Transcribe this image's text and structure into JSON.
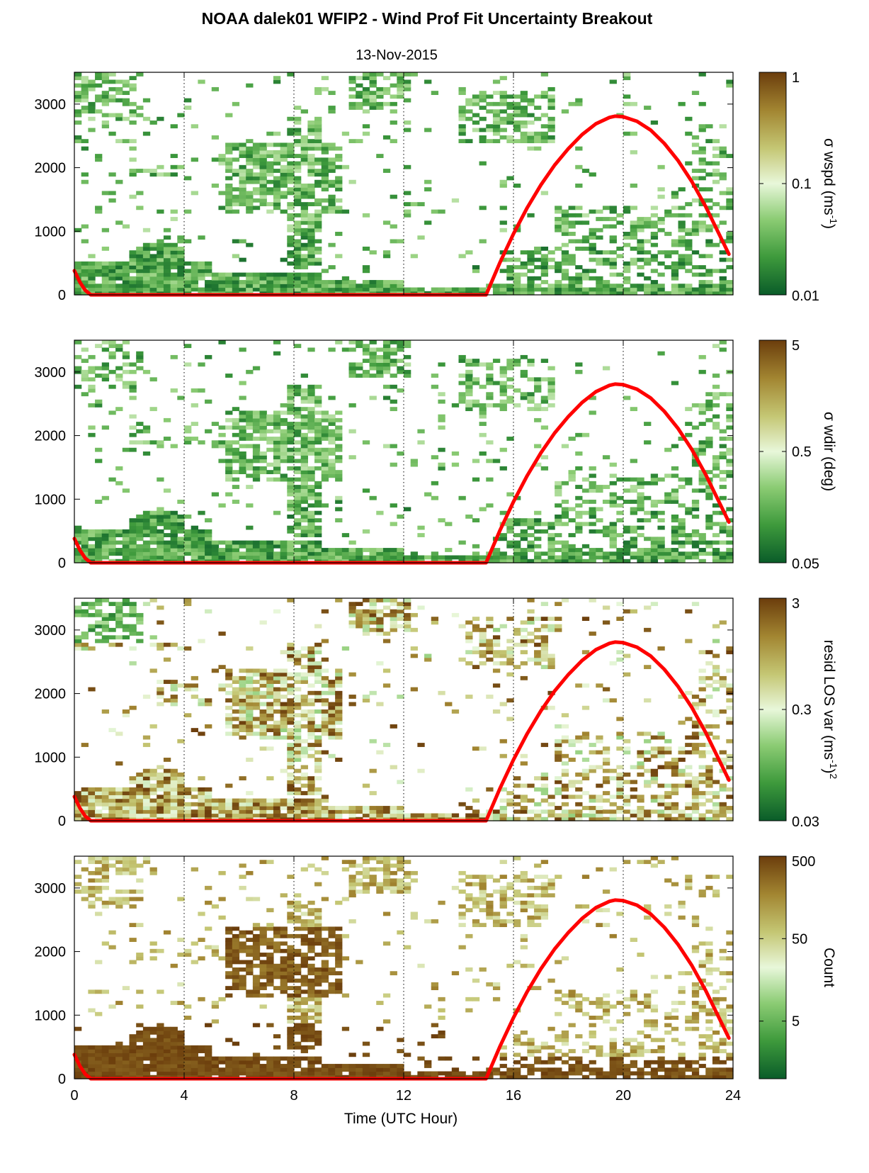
{
  "figure": {
    "title": "NOAA dalek01 WFIP2 - Wind Prof Fit Uncertainty Breakout",
    "subtitle": "13-Nov-2015",
    "xlabel": "Time (UTC Hour)"
  },
  "colors": {
    "ramp": [
      "#0a5c29",
      "#3e9a3c",
      "#8ccc74",
      "#e8f7da",
      "#c4c673",
      "#a28531",
      "#6b3d0c"
    ],
    "overlay_line": "#ff0000",
    "gridline": "#000000"
  },
  "chart_data": [
    {
      "type": "heatmap",
      "name": "sigma wspd",
      "xlim": [
        0,
        24
      ],
      "ylim": [
        0,
        3500
      ],
      "xticks": [
        0,
        4,
        8,
        12,
        16,
        20,
        24
      ],
      "yticks": [
        0,
        1000,
        2000,
        3000
      ],
      "grid": "vertical dotted",
      "colorbar": {
        "label": "σ wspd (ms",
        "label_sup": "-1",
        "label_end": ")",
        "scale": "log",
        "range": [
          0.01,
          1
        ],
        "ticks": [
          "0.01",
          "0.1",
          "1"
        ]
      }
    },
    {
      "type": "heatmap",
      "name": "sigma wdir",
      "xlim": [
        0,
        24
      ],
      "ylim": [
        0,
        3500
      ],
      "xticks": [
        0,
        4,
        8,
        12,
        16,
        20,
        24
      ],
      "yticks": [
        0,
        1000,
        2000,
        3000
      ],
      "grid": "vertical dotted",
      "colorbar": {
        "label": "σ wdir (deg)",
        "scale": "log",
        "range": [
          0.05,
          5
        ],
        "ticks": [
          "0.05",
          "0.5",
          "5"
        ]
      }
    },
    {
      "type": "heatmap",
      "name": "resid LOS var",
      "xlim": [
        0,
        24
      ],
      "ylim": [
        0,
        3500
      ],
      "xticks": [
        0,
        4,
        8,
        12,
        16,
        20,
        24
      ],
      "yticks": [
        0,
        1000,
        2000,
        3000
      ],
      "grid": "vertical dotted",
      "colorbar": {
        "label": "resid LOS var (ms",
        "label_sup": "-1",
        "label_end": ")",
        "label_sup2": "2",
        "scale": "log",
        "range": [
          0.03,
          3
        ],
        "ticks": [
          "0.03",
          "0.3",
          "3"
        ]
      }
    },
    {
      "type": "heatmap",
      "name": "count",
      "xlim": [
        0,
        24
      ],
      "ylim": [
        0,
        3500
      ],
      "xticks": [
        0,
        4,
        8,
        12,
        16,
        20,
        24
      ],
      "yticks": [
        0,
        1000,
        2000,
        3000
      ],
      "xticklabels": [
        "0",
        "4",
        "8",
        "12",
        "16",
        "20",
        "24"
      ],
      "grid": "vertical dotted",
      "colorbar": {
        "label": "Count",
        "scale": "log",
        "range": [
          1,
          500
        ],
        "ticks": [
          "5",
          "50",
          "500"
        ]
      }
    }
  ],
  "overlay_curve": {
    "type": "line",
    "description_units": "UTC hour vs height",
    "points": [
      [
        0.0,
        380
      ],
      [
        0.2,
        200
      ],
      [
        0.4,
        70
      ],
      [
        0.6,
        0
      ],
      [
        15.0,
        0
      ],
      [
        15.5,
        500
      ],
      [
        16.0,
        960
      ],
      [
        16.5,
        1370
      ],
      [
        17.0,
        1730
      ],
      [
        17.5,
        2040
      ],
      [
        18.0,
        2300
      ],
      [
        18.5,
        2520
      ],
      [
        19.0,
        2690
      ],
      [
        19.5,
        2790
      ],
      [
        19.7,
        2810
      ],
      [
        20.0,
        2800
      ],
      [
        20.5,
        2730
      ],
      [
        21.0,
        2590
      ],
      [
        21.5,
        2380
      ],
      [
        22.0,
        2110
      ],
      [
        22.5,
        1780
      ],
      [
        23.0,
        1390
      ],
      [
        23.5,
        950
      ],
      [
        23.85,
        640
      ]
    ]
  }
}
